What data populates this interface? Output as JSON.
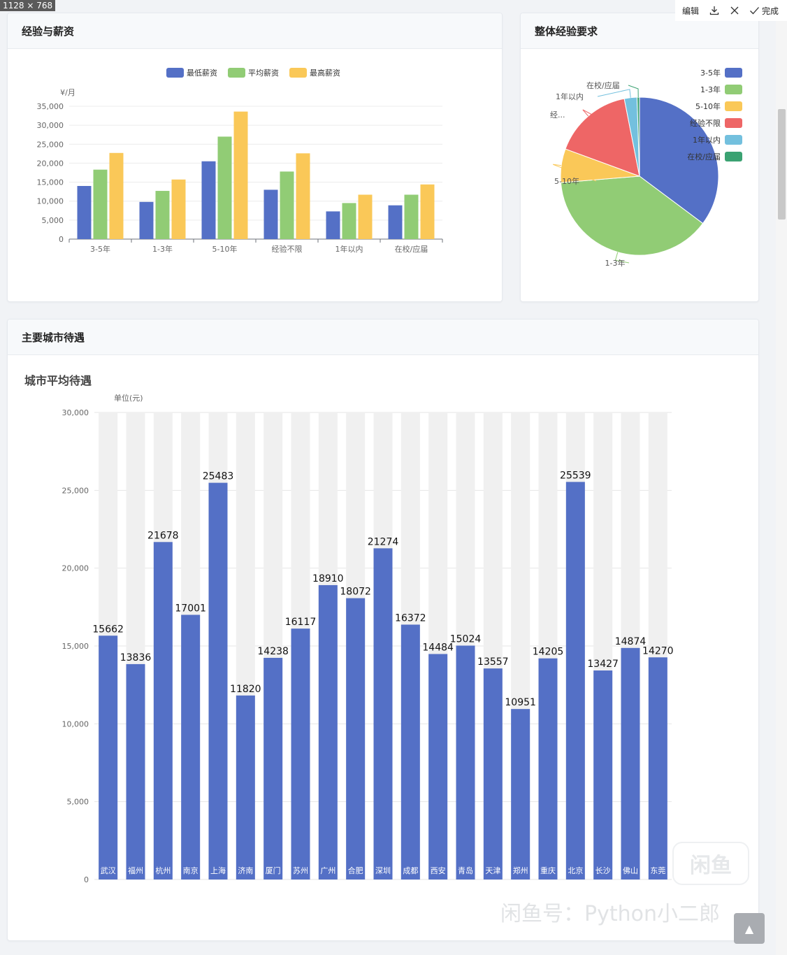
{
  "size_label": "1128 × 768",
  "toolbar": {
    "edit": "编辑",
    "done": "完成"
  },
  "cards": {
    "exp_salary": {
      "title": "经验与薪资"
    },
    "exp_overall": {
      "title": "整体经验要求"
    },
    "city": {
      "title": "主要城市待遇"
    }
  },
  "watermark": {
    "badge": "闲鱼",
    "text": "闲鱼号：Python小二郎"
  },
  "colors": {
    "blue": "#5470c6",
    "green": "#91cc75",
    "yellow": "#fac858",
    "red": "#ee6666",
    "cyan": "#73c0de",
    "teal": "#3ba272"
  },
  "chart_data": [
    {
      "type": "bar",
      "ylabel": "¥/月",
      "ylim": [
        0,
        35000
      ],
      "yticks": [
        "0",
        "5,000",
        "10,000",
        "15,000",
        "20,000",
        "25,000",
        "30,000",
        "35,000"
      ],
      "categories": [
        "3-5年",
        "1-3年",
        "5-10年",
        "经验不限",
        "1年以内",
        "在校/应届"
      ],
      "series": [
        {
          "name": "最低薪资",
          "color": "#5470c6",
          "values": [
            14000,
            9800,
            20500,
            13000,
            7300,
            8900
          ]
        },
        {
          "name": "平均薪资",
          "color": "#91cc75",
          "values": [
            18300,
            12700,
            27000,
            17800,
            9500,
            11700
          ]
        },
        {
          "name": "最高薪资",
          "color": "#fac858",
          "values": [
            22700,
            15700,
            33600,
            22600,
            11700,
            14400
          ]
        }
      ],
      "legend": "top-center",
      "grid": true
    },
    {
      "type": "pie",
      "legend": "right",
      "slices": [
        {
          "label": "3-5年",
          "legend_label": "3-5年",
          "value": 35.2,
          "color": "#5470c6"
        },
        {
          "label": "1-3年",
          "legend_label": "1-3年",
          "value": 38.5,
          "color": "#91cc75"
        },
        {
          "label": "5-10年",
          "legend_label": "5-10年",
          "value": 6.9,
          "color": "#fac858"
        },
        {
          "label": "经...",
          "legend_label": "经验不限",
          "value": 16.3,
          "color": "#ee6666"
        },
        {
          "label": "1年以内",
          "legend_label": "1年以内",
          "value": 2.6,
          "color": "#73c0de"
        },
        {
          "label": "在校/应届",
          "legend_label": "在校/应届",
          "value": 0.5,
          "color": "#3ba272"
        }
      ]
    },
    {
      "type": "bar",
      "title": "城市平均待遇",
      "ylabel": "单位(元)",
      "ylim": [
        0,
        30000
      ],
      "yticks": [
        "0",
        "5,000",
        "10,000",
        "15,000",
        "20,000",
        "25,000",
        "30,000"
      ],
      "categories": [
        "武汉",
        "福州",
        "杭州",
        "南京",
        "上海",
        "济南",
        "厦门",
        "苏州",
        "广州",
        "合肥",
        "深圳",
        "成都",
        "西安",
        "青岛",
        "天津",
        "郑州",
        "重庆",
        "北京",
        "长沙",
        "佛山",
        "东莞"
      ],
      "values": [
        15662,
        13836,
        21678,
        17001,
        25483,
        11820,
        14238,
        16117,
        18910,
        18072,
        21274,
        16372,
        14484,
        15024,
        13557,
        10951,
        14205,
        25539,
        13427,
        14874,
        14270
      ],
      "color": "#5470c6",
      "background_bars": true,
      "grid": true
    }
  ]
}
